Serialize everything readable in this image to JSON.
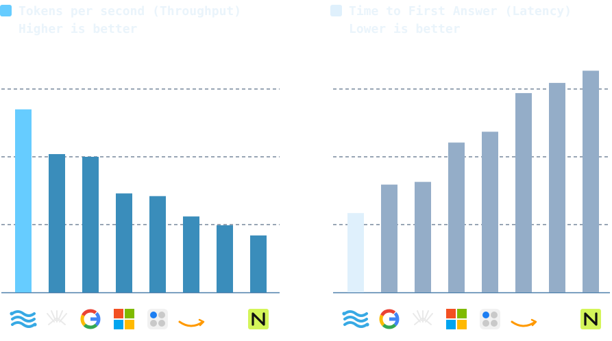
{
  "charts": [
    {
      "legend": {
        "line1": "Tokens per second (Throughput)",
        "line2": "Higher is better",
        "color": "#66ccff"
      },
      "chart_data": {
        "type": "bar",
        "metric": "Tokens per second (Throughput)",
        "note": "Higher is better",
        "categories": [
          "cerebras",
          "perplexity",
          "google",
          "microsoft",
          "together-ai",
          "amazon",
          "blank",
          "nvidia-nim"
        ],
        "values": [
          270,
          204,
          200,
          146,
          142,
          112,
          99,
          84
        ],
        "ylim": [
          0,
          300
        ],
        "gridlines": [
          100,
          200,
          300
        ],
        "highlight_color": "#66ccff",
        "bar_color": "#3a8dbb"
      }
    },
    {
      "legend": {
        "line1": "Time to First Answer (Latency)",
        "line2": "Lower is better",
        "color": "#dff0fc"
      },
      "chart_data": {
        "type": "bar",
        "metric": "Time to First Answer (Latency)",
        "note": "Lower is better",
        "categories": [
          "cerebras",
          "google",
          "perplexity",
          "microsoft",
          "together-ai",
          "amazon",
          "blank",
          "nvidia-nim"
        ],
        "values": [
          117,
          159,
          163,
          221,
          237,
          294,
          309,
          327
        ],
        "ylim": [
          0,
          300
        ],
        "gridlines": [
          100,
          200,
          300
        ],
        "highlight_color": "#dff0fc",
        "bar_color": "#94adc8"
      }
    }
  ]
}
